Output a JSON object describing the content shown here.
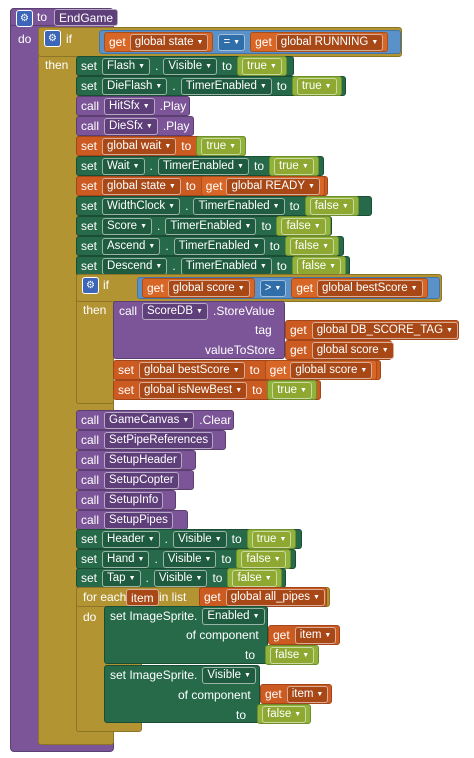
{
  "procedure": {
    "to": "to",
    "name": "EndGame",
    "do": "do"
  },
  "kw": {
    "if": "if",
    "then": "then",
    "set": "set",
    "get": "get",
    "call": "call",
    "to": "to",
    "play": ".Play",
    "foreach": "for each",
    "inlist": "in list",
    "do": "do",
    "eq": "=",
    "gt": ">",
    "of_component": "of component",
    "dot": "."
  },
  "if1": {
    "left": "global state",
    "right": "global RUNNING"
  },
  "b": {
    "flash_comp": "Flash",
    "flash_prop": "Visible",
    "flash_val": "true",
    "dieflash_comp": "DieFlash",
    "dieflash_prop": "TimerEnabled",
    "dieflash_val": "true",
    "hitsfx": "HitSfx",
    "diesfx": "DieSfx",
    "wait_var": "global wait",
    "wait_val": "true",
    "wait_comp": "Wait",
    "wait_prop": "TimerEnabled",
    "wait_val2": "true",
    "state_var": "global state",
    "state_get": "global READY",
    "widthclock_comp": "WidthClock",
    "widthclock_prop": "TimerEnabled",
    "widthclock_val": "false",
    "score_comp": "Score",
    "score_prop": "TimerEnabled",
    "score_val": "false",
    "ascend_comp": "Ascend",
    "ascend_prop": "TimerEnabled",
    "ascend_val": "false",
    "descend_comp": "Descend",
    "descend_prop": "TimerEnabled",
    "descend_val": "false"
  },
  "if2": {
    "left": "global score",
    "right": "global bestScore",
    "scoredb": "ScoreDB",
    "storevalue": ".StoreValue",
    "tag_label": "tag",
    "tag_val": "global DB_SCORE_TAG",
    "vts_label": "valueToStore",
    "vts_val": "global score",
    "best_var": "global bestScore",
    "best_get": "global score",
    "newbest_var": "global isNewBest",
    "newbest_val": "true"
  },
  "c": {
    "gamecanvas": "GameCanvas",
    "clear": ".Clear",
    "p1": "SetPipeReferences",
    "p2": "SetupHeader",
    "p3": "SetupCopter",
    "p4": "SetupInfo",
    "p5": "SetupPipes",
    "header_comp": "Header",
    "header_prop": "Visible",
    "header_val": "true",
    "hand_comp": "Hand",
    "hand_prop": "Visible",
    "hand_val": "false",
    "tap_comp": "Tap",
    "tap_prop": "Visible",
    "tap_val": "false"
  },
  "loop": {
    "item": "item",
    "list": "global all_pipes",
    "set1_prefix": "set ImageSprite.",
    "set1_prop": "Enabled",
    "set1_val": "false",
    "set2_prefix": "set ImageSprite.",
    "set2_prop": "Visible",
    "set2_val": "false",
    "get_item": "item"
  }
}
